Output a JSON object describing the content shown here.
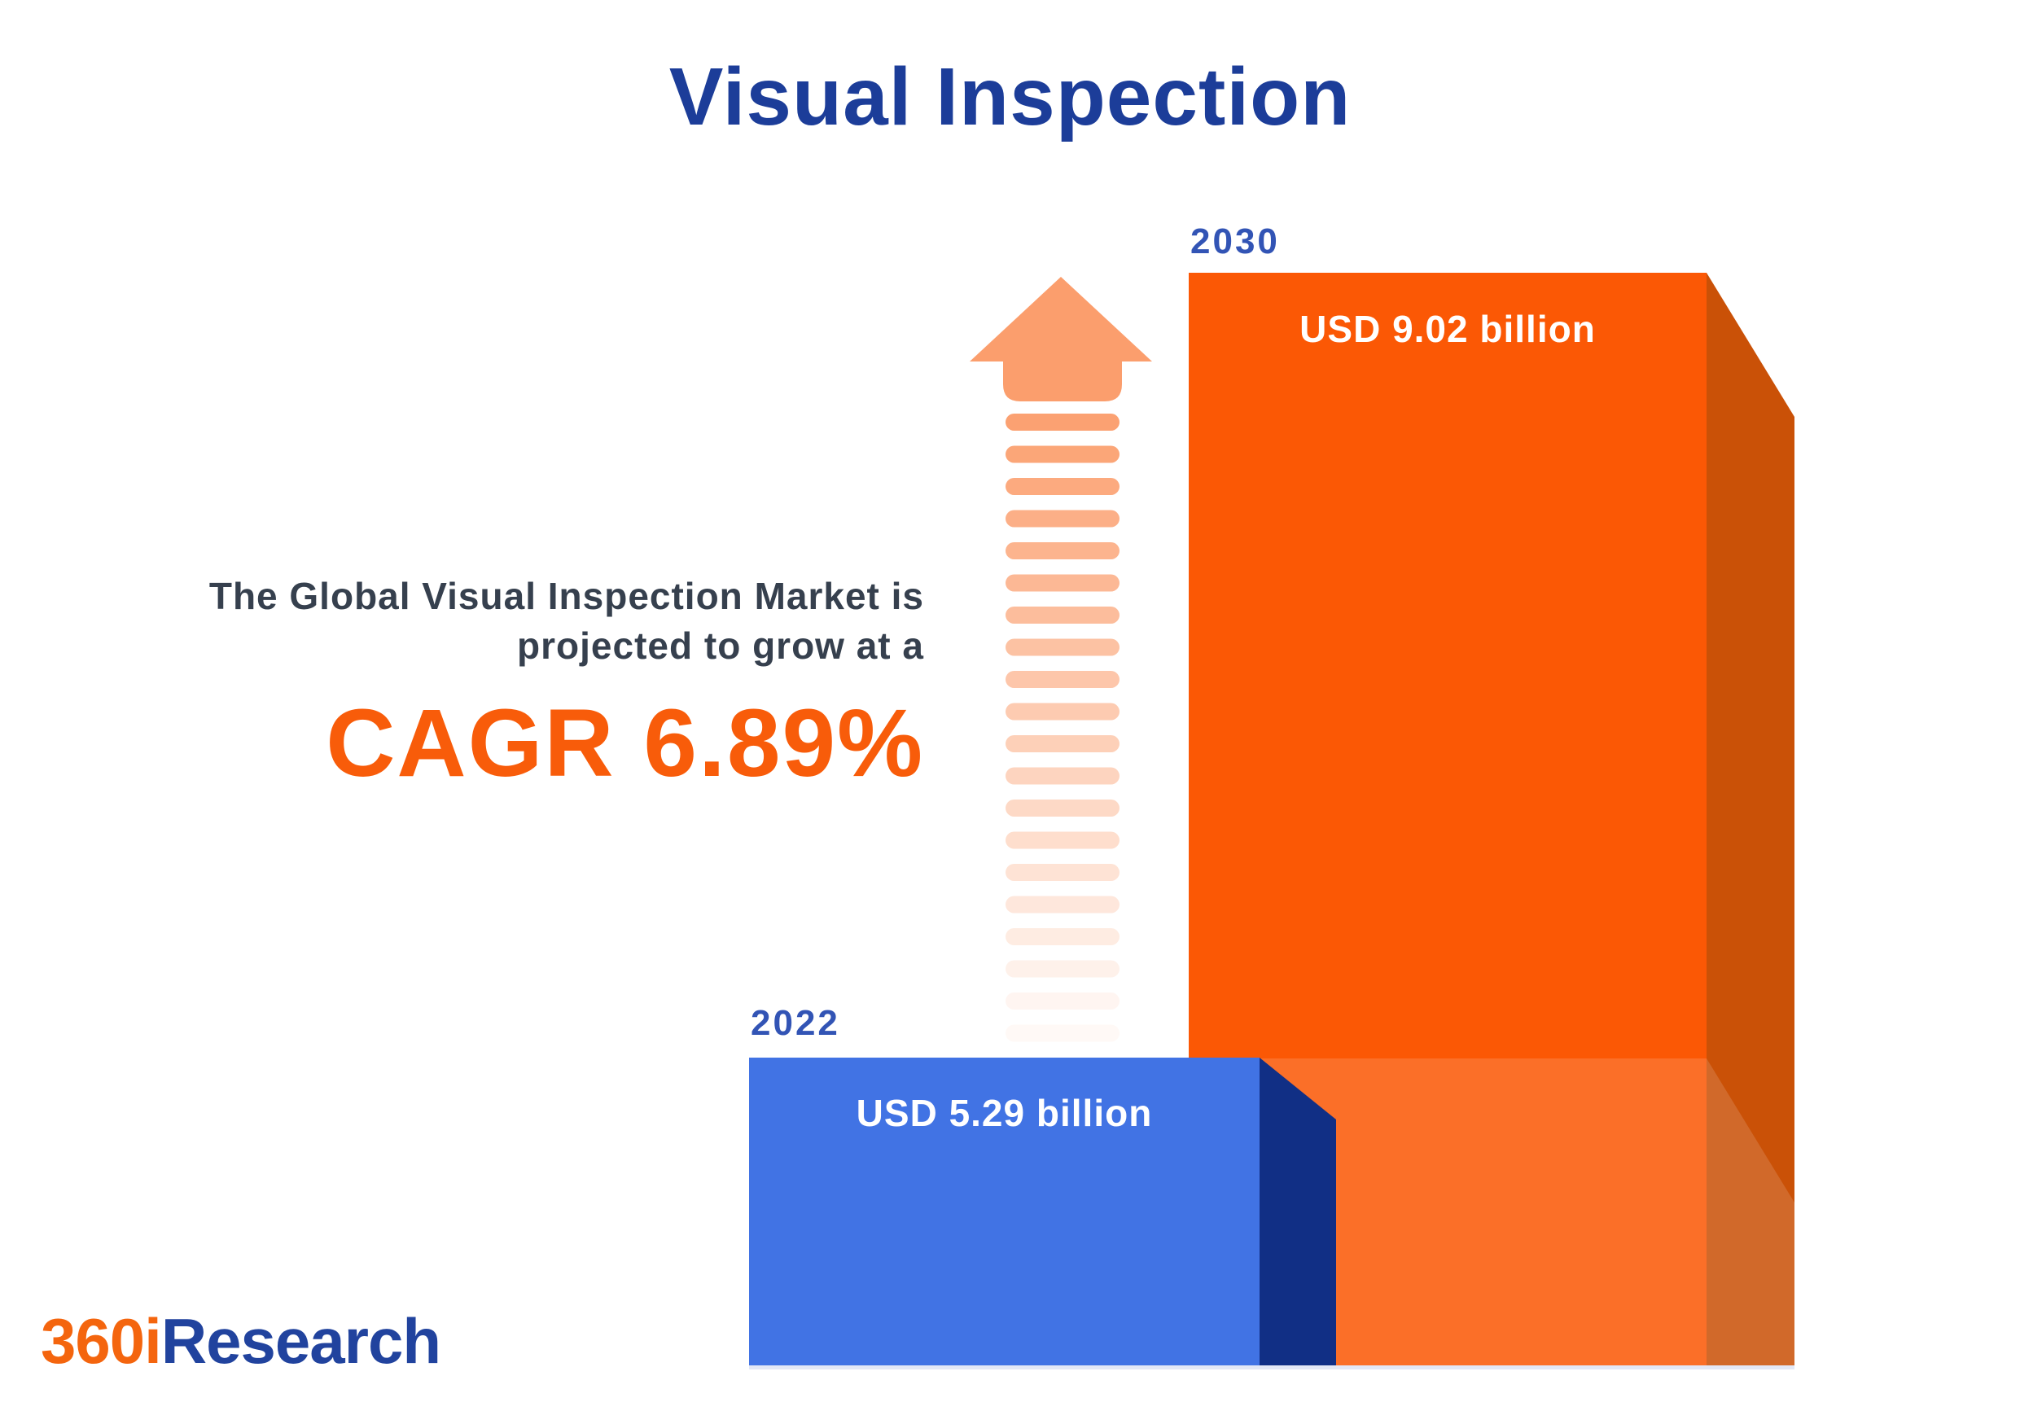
{
  "title": "Visual Inspection",
  "description": {
    "line1": "The Global Visual Inspection Market is",
    "line2": "projected to grow at a",
    "cagr": "CAGR 6.89%"
  },
  "bars": {
    "b2030": {
      "year": "2030",
      "value_label": "USD 9.02 billion"
    },
    "b2022": {
      "year": "2022",
      "value_label": "USD 5.29 billion"
    }
  },
  "logo": {
    "prefix": "360i",
    "suffix": "Research"
  },
  "colors": {
    "background": "#ffffff",
    "title_blue": "#1c3d99",
    "year_blue": "#3254b5",
    "text_dark": "#36404e",
    "cagr_orange": "#f85c0a",
    "orange_front": "#fb5805",
    "orange_side": "#ca5107",
    "band_overlay": "#ffffff",
    "blue_front": "#4173e4",
    "navy_side": "#112f85",
    "arrow_orange": "#fb9e6d",
    "bar_label_white": "#ffffff",
    "logo_orange": "#f4650e",
    "logo_blue": "#21439e",
    "shadow": "#8fa3dc"
  },
  "chart_data": {
    "type": "bar",
    "title": "Visual Inspection",
    "categories": [
      "2022",
      "2030"
    ],
    "series": [
      {
        "name": "Global Visual Inspection Market size",
        "values": [
          5.29,
          9.02
        ]
      }
    ],
    "value_labels": [
      "USD 5.29 billion",
      "USD 9.02 billion"
    ],
    "unit": "USD billion",
    "cagr_percent": 6.89,
    "annotation": "The Global Visual Inspection Market is projected to grow at a CAGR 6.89%",
    "source_logo": "360iResearch",
    "legend_position": "none",
    "grid": false,
    "axis_labels_visible": false
  }
}
